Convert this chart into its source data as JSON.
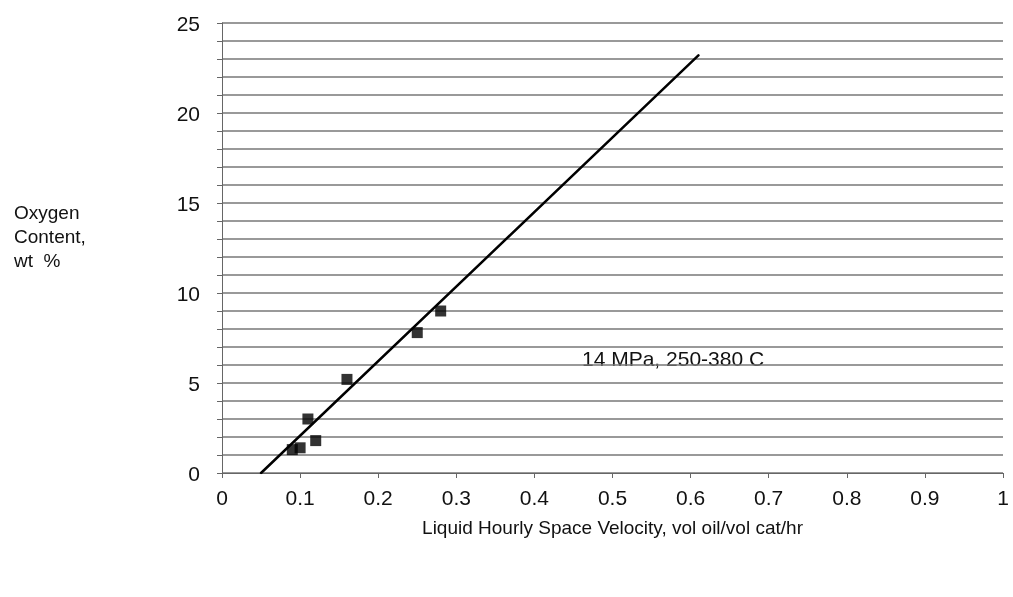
{
  "chart_data": {
    "type": "scatter",
    "xlabel": "Liquid Hourly Space Velocity, vol oil/vol cat/hr",
    "ylabel": "Oxygen Content, wt  %",
    "xlim": [
      0,
      1
    ],
    "xticks": [
      0,
      0.1,
      0.2,
      0.3,
      0.4,
      0.5,
      0.6,
      0.7,
      0.8,
      0.9,
      1
    ],
    "ylim": [
      0,
      25
    ],
    "yticks": [
      0,
      {
        "value": 1,
        "label": null
      },
      {
        "value": 2,
        "label": null
      },
      {
        "value": 3,
        "label": null
      },
      {
        "value": 4,
        "label": null
      },
      5,
      {
        "value": 6,
        "label": null
      },
      {
        "value": 7,
        "label": null
      },
      {
        "value": 8,
        "label": null
      },
      {
        "value": 9,
        "label": null
      },
      10,
      {
        "value": 11,
        "label": null
      },
      {
        "value": 12,
        "label": null
      },
      {
        "value": 13,
        "label": null
      },
      {
        "value": 14,
        "label": null
      },
      15,
      {
        "value": 16,
        "label": null
      },
      {
        "value": 17,
        "label": null
      },
      {
        "value": 18,
        "label": null
      },
      {
        "value": 19,
        "label": null
      },
      20,
      {
        "value": 21,
        "label": null
      },
      {
        "value": 22,
        "label": null
      },
      {
        "value": 23,
        "label": null
      },
      {
        "value": 24,
        "label": null
      },
      25
    ],
    "grid": "y",
    "series": [
      {
        "color": "#000000",
        "marker": "square",
        "x": [
          0.09,
          0.1,
          0.11,
          0.12,
          0.16,
          0.25,
          0.28
        ],
        "values": [
          1.3,
          1.4,
          3.0,
          1.8,
          5.2,
          7.8,
          9.0
        ]
      },
      {
        "type": "line",
        "color": "#000000",
        "marker": "none",
        "line_style": "solid",
        "x": [
          0.05,
          0.61
        ],
        "values": [
          0,
          23.2
        ]
      }
    ],
    "annotations": [
      "14 MPa, 250-380 C"
    ]
  }
}
